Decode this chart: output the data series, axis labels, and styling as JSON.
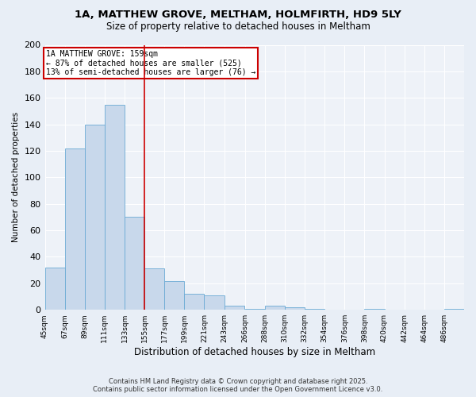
{
  "title": "1A, MATTHEW GROVE, MELTHAM, HOLMFIRTH, HD9 5LY",
  "subtitle": "Size of property relative to detached houses in Meltham",
  "xlabel": "Distribution of detached houses by size in Meltham",
  "ylabel": "Number of detached properties",
  "bar_values": [
    32,
    122,
    140,
    155,
    70,
    31,
    22,
    12,
    11,
    3,
    1,
    3,
    2,
    1,
    0,
    0,
    1,
    0,
    0,
    0,
    1
  ],
  "bin_labels": [
    "45sqm",
    "67sqm",
    "89sqm",
    "111sqm",
    "133sqm",
    "155sqm",
    "177sqm",
    "199sqm",
    "221sqm",
    "243sqm",
    "266sqm",
    "288sqm",
    "310sqm",
    "332sqm",
    "354sqm",
    "376sqm",
    "398sqm",
    "420sqm",
    "442sqm",
    "464sqm",
    "486sqm"
  ],
  "bin_edges": [
    45,
    67,
    89,
    111,
    133,
    155,
    177,
    199,
    221,
    243,
    266,
    288,
    310,
    332,
    354,
    376,
    398,
    420,
    442,
    464,
    486
  ],
  "bar_color": "#c8d8eb",
  "bar_edge_color": "#6aaad4",
  "vline_x": 155,
  "vline_color": "#cc0000",
  "annotation_box_color": "#cc0000",
  "annotation_text_line1": "1A MATTHEW GROVE: 159sqm",
  "annotation_text_line2": "← 87% of detached houses are smaller (525)",
  "annotation_text_line3": "13% of semi-detached houses are larger (76) →",
  "ylim": [
    0,
    200
  ],
  "yticks": [
    0,
    20,
    40,
    60,
    80,
    100,
    120,
    140,
    160,
    180,
    200
  ],
  "footnote_line1": "Contains HM Land Registry data © Crown copyright and database right 2025.",
  "footnote_line2": "Contains public sector information licensed under the Open Government Licence v3.0.",
  "bg_color": "#e8eef6",
  "plot_bg_color": "#eef2f8"
}
